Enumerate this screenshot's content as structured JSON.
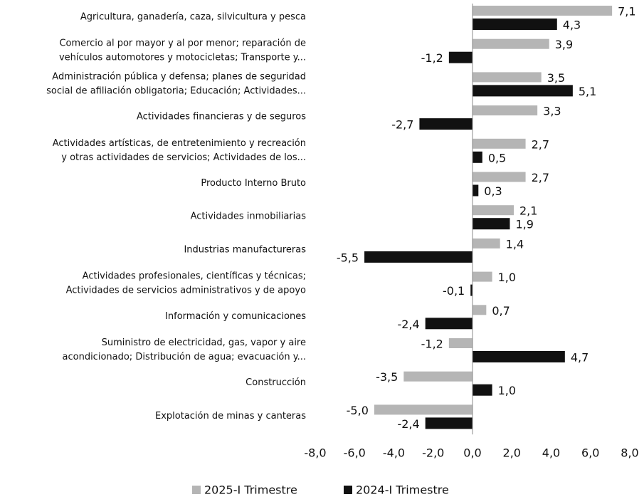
{
  "chart_data": {
    "type": "bar",
    "orientation": "horizontal",
    "categories": [
      "Agricultura, ganadería, caza, silvicultura y pesca",
      "Comercio al por mayor y al por menor; reparación de\nvehículos automotores y motocicletas; Transporte y...",
      "Administración pública y defensa; planes de seguridad\nsocial de afiliación obligatoria; Educación; Actividades...",
      "Actividades financieras y de seguros",
      "Actividades artísticas, de entretenimiento y recreación\ny otras actividades de servicios; Actividades de los...",
      "Producto Interno Bruto",
      "Actividades inmobiliarias",
      "Industrias manufactureras",
      "Actividades profesionales, científicas y técnicas;\nActividades de servicios administrativos y de apoyo",
      "Información y comunicaciones",
      "Suministro de electricidad, gas, vapor y aire\nacondicionado; Distribución de agua; evacuación y...",
      "Construcción",
      "Explotación de minas y canteras"
    ],
    "series": [
      {
        "name": "2025-I Trimestre",
        "color": "#b5b5b5",
        "values": [
          7.1,
          3.9,
          3.5,
          3.3,
          2.7,
          2.7,
          2.1,
          1.4,
          1.0,
          0.7,
          -1.2,
          -3.5,
          -5.0
        ],
        "value_labels": [
          "7,1",
          "3,9",
          "3,5",
          "3,3",
          "2,7",
          "2,7",
          "2,1",
          "1,4",
          "1,0",
          "0,7",
          "-1,2",
          "-3,5",
          "-5,0"
        ]
      },
      {
        "name": "2024-I Trimestre",
        "color": "#111111",
        "values": [
          4.3,
          -1.2,
          5.1,
          -2.7,
          0.5,
          0.3,
          1.9,
          -5.5,
          -0.1,
          -2.4,
          4.7,
          1.0,
          -2.4
        ],
        "value_labels": [
          "4,3",
          "-1,2",
          "5,1",
          "-2,7",
          "0,5",
          "0,3",
          "1,9",
          "-5,5",
          "-0,1",
          "-2,4",
          "4,7",
          "1,0",
          "-2,4"
        ]
      }
    ],
    "xlim": [
      -8,
      8
    ],
    "xticks": [
      {
        "value": -8,
        "label": "-8,0"
      },
      {
        "value": -6,
        "label": "-6,0"
      },
      {
        "value": -4,
        "label": "-4,0"
      },
      {
        "value": -2,
        "label": "-2,0"
      },
      {
        "value": 0,
        "label": "0,0"
      },
      {
        "value": 2,
        "label": "2,0"
      },
      {
        "value": 4,
        "label": "4,0"
      },
      {
        "value": 6,
        "label": "6,0"
      },
      {
        "value": 8,
        "label": "8,0"
      }
    ],
    "legend": "bottom"
  }
}
